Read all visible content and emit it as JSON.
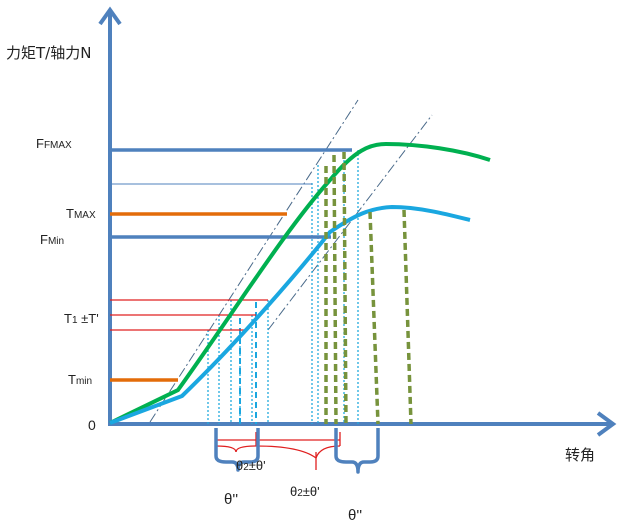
{
  "labels": {
    "y_axis_title": "力矩T/轴力N",
    "x_axis_title": "转角",
    "origin": "0",
    "f_max": "FMAX",
    "t_max": "TMAX",
    "f_min": "FMin",
    "t1_range": "T1 ±T'",
    "t_min": "Tmin",
    "theta2_range_left": "θ2±θ'",
    "theta2_range_right": "θ2±θ'",
    "theta_dd_left": "θ''",
    "theta_dd_right": "θ''"
  },
  "colors": {
    "axis": "#4f81bd",
    "torque_curve": "#00b050",
    "axial_force_curve": "#1aa7e0",
    "torque_level": "#e36c09",
    "force_level": "#4f81bd",
    "tolerance_lines": "#e02020",
    "rotation_markers": "#77933c",
    "guide_lines": "#4a6a8a"
  }
}
